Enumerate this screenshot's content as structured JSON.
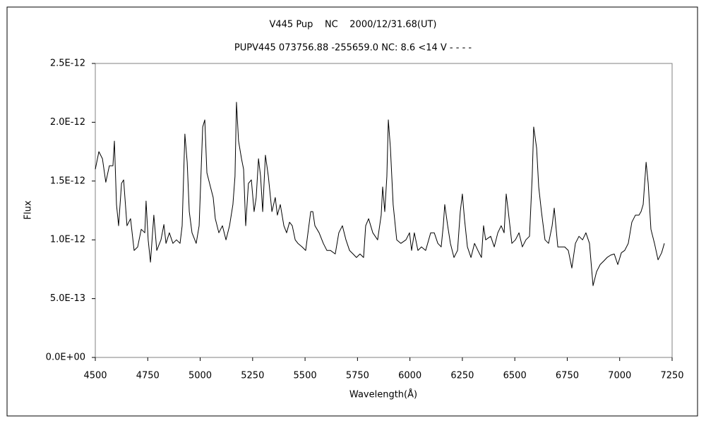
{
  "chart_data": {
    "type": "line",
    "title": "V445 Pup    NC    2000/12/31.68(UT)",
    "subtitle": "PUPV445 073756.88 -255659.0 NC: 8.6 <14 V - - - -",
    "x_label": "Wavelength(Å)",
    "y_label": "Flux",
    "xlim": [
      4500,
      7250
    ],
    "xticks": [
      4500,
      4750,
      5000,
      5250,
      5500,
      5750,
      6000,
      6250,
      6500,
      6750,
      7000,
      7250
    ],
    "ylim": [
      0,
      2.5e-12
    ],
    "yticks": [
      {
        "value": 0,
        "label": "0.0E+00"
      },
      {
        "value": 5e-13,
        "label": "5.0E-13"
      },
      {
        "value": 1e-12,
        "label": "1.0E-12"
      },
      {
        "value": 1.5e-12,
        "label": "1.5E-12"
      },
      {
        "value": 2e-12,
        "label": "2.0E-12"
      },
      {
        "value": 2.5e-12,
        "label": "2.5E-12"
      }
    ],
    "grid": false,
    "series": [
      {
        "color": "#000000",
        "x": [
          4500,
          4517,
          4534,
          4550,
          4567,
          4584,
          4591,
          4601,
          4611,
          4625,
          4635,
          4651,
          4668,
          4685,
          4702,
          4719,
          4736,
          4742,
          4752,
          4763,
          4779,
          4793,
          4813,
          4827,
          4837,
          4853,
          4870,
          4887,
          4904,
          4914,
          4927,
          4938,
          4948,
          4961,
          4981,
          4995,
          5012,
          5022,
          5032,
          5049,
          5062,
          5072,
          5089,
          5106,
          5123,
          5140,
          5156,
          5166,
          5173,
          5183,
          5197,
          5207,
          5217,
          5230,
          5244,
          5257,
          5267,
          5278,
          5288,
          5298,
          5311,
          5325,
          5342,
          5358,
          5368,
          5382,
          5399,
          5412,
          5426,
          5439,
          5453,
          5466,
          5486,
          5503,
          5527,
          5537,
          5547,
          5567,
          5587,
          5604,
          5621,
          5644,
          5661,
          5678,
          5695,
          5712,
          5729,
          5745,
          5762,
          5779,
          5789,
          5803,
          5823,
          5846,
          5863,
          5870,
          5880,
          5890,
          5897,
          5907,
          5920,
          5937,
          5957,
          5981,
          5998,
          6008,
          6021,
          6038,
          6055,
          6075,
          6099,
          6116,
          6133,
          6149,
          6159,
          6166,
          6180,
          6193,
          6210,
          6227,
          6240,
          6250,
          6260,
          6274,
          6291,
          6308,
          6324,
          6341,
          6351,
          6361,
          6385,
          6402,
          6419,
          6435,
          6449,
          6459,
          6469,
          6486,
          6503,
          6520,
          6536,
          6553,
          6570,
          6583,
          6590,
          6604,
          6614,
          6627,
          6644,
          6661,
          6678,
          6688,
          6705,
          6722,
          6738,
          6755,
          6772,
          6789,
          6806,
          6823,
          6839,
          6856,
          6873,
          6890,
          6907,
          6924,
          6940,
          6957,
          6974,
          6991,
          7008,
          7024,
          7041,
          7058,
          7075,
          7092,
          7102,
          7112,
          7126,
          7136,
          7149,
          7166,
          7183,
          7200,
          7213
        ],
        "values": [
          1.6e-12,
          1.75e-12,
          1.69e-12,
          1.49e-12,
          1.63e-12,
          1.63e-12,
          1.84e-12,
          1.3e-12,
          1.12e-12,
          1.48e-12,
          1.51e-12,
          1.12e-12,
          1.18e-12,
          9.1e-13,
          9.4e-13,
          1.09e-12,
          1.06e-12,
          1.33e-12,
          1e-12,
          8.1e-13,
          1.21e-12,
          9.1e-13,
          1e-12,
          1.13e-12,
          9.7e-13,
          1.06e-12,
          9.7e-13,
          1e-12,
          9.7e-13,
          1.12e-12,
          1.9e-12,
          1.66e-12,
          1.24e-12,
          1.06e-12,
          9.7e-13,
          1.12e-12,
          1.96e-12,
          2.02e-12,
          1.57e-12,
          1.45e-12,
          1.36e-12,
          1.18e-12,
          1.06e-12,
          1.12e-12,
          1e-12,
          1.12e-12,
          1.3e-12,
          1.54e-12,
          2.17e-12,
          1.84e-12,
          1.69e-12,
          1.6e-12,
          1.12e-12,
          1.48e-12,
          1.51e-12,
          1.24e-12,
          1.36e-12,
          1.69e-12,
          1.54e-12,
          1.24e-12,
          1.72e-12,
          1.54e-12,
          1.24e-12,
          1.36e-12,
          1.21e-12,
          1.3e-12,
          1.12e-12,
          1.06e-12,
          1.15e-12,
          1.12e-12,
          1e-12,
          9.7e-13,
          9.4e-13,
          9.1e-13,
          1.24e-12,
          1.24e-12,
          1.12e-12,
          1.06e-12,
          9.7e-13,
          9.1e-13,
          9.1e-13,
          8.8e-13,
          1.06e-12,
          1.12e-12,
          1e-12,
          9.1e-13,
          8.8e-13,
          8.5e-13,
          8.8e-13,
          8.5e-13,
          1.12e-12,
          1.18e-12,
          1.06e-12,
          1e-12,
          1.21e-12,
          1.45e-12,
          1.24e-12,
          1.54e-12,
          2.02e-12,
          1.78e-12,
          1.3e-12,
          1e-12,
          9.7e-13,
          1e-12,
          1.06e-12,
          9.1e-13,
          1.06e-12,
          9.1e-13,
          9.4e-13,
          9.1e-13,
          1.06e-12,
          1.06e-12,
          9.7e-13,
          9.4e-13,
          1.12e-12,
          1.3e-12,
          1.12e-12,
          9.7e-13,
          8.5e-13,
          9.1e-13,
          1.24e-12,
          1.39e-12,
          1.18e-12,
          9.4e-13,
          8.5e-13,
          9.7e-13,
          9.1e-13,
          8.5e-13,
          1.12e-12,
          1e-12,
          1.03e-12,
          9.4e-13,
          1.06e-12,
          1.12e-12,
          1.06e-12,
          1.39e-12,
          1.24e-12,
          9.7e-13,
          1e-12,
          1.06e-12,
          9.4e-13,
          1e-12,
          1.03e-12,
          1.54e-12,
          1.96e-12,
          1.78e-12,
          1.45e-12,
          1.24e-12,
          1e-12,
          9.7e-13,
          1.12e-12,
          1.27e-12,
          9.4e-13,
          9.4e-13,
          9.4e-13,
          9.1e-13,
          7.6e-13,
          9.7e-13,
          1.03e-12,
          1e-12,
          1.06e-12,
          9.7e-13,
          6.1e-13,
          7.3e-13,
          7.9e-13,
          8.2e-13,
          8.5e-13,
          8.7e-13,
          8.8e-13,
          7.9e-13,
          8.9e-13,
          9.1e-13,
          9.7e-13,
          1.15e-12,
          1.21e-12,
          1.21e-12,
          1.24e-12,
          1.3e-12,
          1.66e-12,
          1.48e-12,
          1.09e-12,
          9.7e-13,
          8.3e-13,
          8.9e-13,
          9.7e-13
        ]
      }
    ]
  }
}
